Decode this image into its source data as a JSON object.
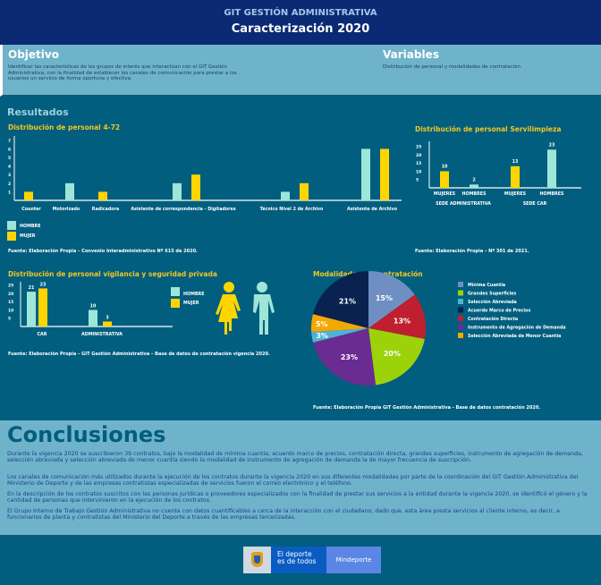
{
  "header": {
    "subtitle": "GIT GESTIÓN ADMINISTRATIVA",
    "title": "Caracterización 2020"
  },
  "objetivo": {
    "title": "Objetivo",
    "text": "Identificar las características de los grupos de interés que interactúan con el GIT Gestión Administrativa, con la finalidad de establecer los canales de comunicación para prestar a los usuarios un servicio de forma oportuna y efectiva."
  },
  "variables": {
    "title": "Variables",
    "text": "Distribución de personal y modalidades de contratación"
  },
  "resultados": {
    "title": "Resultados"
  },
  "colors": {
    "hombre": "#9de6d8",
    "mujer": "#ffd500"
  },
  "chart_data": [
    {
      "type": "bar",
      "title": "Distribución de personal 4-72",
      "categories": [
        "Counter",
        "Motorizado",
        "Radicadora",
        "Asistente de correspondencia - Digitadores",
        "Técnico Nivel 2 de Archivo",
        "Asistente de Archivo"
      ],
      "series": [
        {
          "name": "HOMBRE",
          "values": [
            0,
            2,
            0,
            2,
            1,
            6
          ]
        },
        {
          "name": "MUJER",
          "values": [
            1,
            0,
            1,
            3,
            2,
            6
          ]
        }
      ],
      "yticks": [
        "1",
        "2",
        "3",
        "4",
        "5",
        "6",
        "7"
      ],
      "ylim": [
        0,
        7.5
      ],
      "legend": "bottom-left",
      "source": "Fuente: Elaboración Propia – Convenio Interadministrativo Nº 615 de 2020."
    },
    {
      "type": "bar",
      "title": "Distribución de personal Servilimpieza",
      "groups": [
        "SEDE ADMINISTRATIVA",
        "SEDE CAR"
      ],
      "categories": [
        "MUJERES",
        "HOMBRES",
        "MUJERES",
        "HOMBRES"
      ],
      "values": [
        10,
        2,
        13,
        23
      ],
      "value_labels": [
        "10",
        "2",
        "13",
        "23"
      ],
      "yticks": [
        "5",
        "10",
        "15",
        "20",
        "25"
      ],
      "ylim": [
        0,
        28
      ],
      "source": "Fuente: Elaboración Propia – Nº 301 de 2021."
    },
    {
      "type": "bar",
      "title": "Distribución de personal vigilancia y seguridad privada",
      "categories": [
        "CAR",
        "ADMINISTRATIVA"
      ],
      "series": [
        {
          "name": "HOMBRE",
          "values": [
            21,
            10
          ],
          "labels": [
            "21",
            "10"
          ]
        },
        {
          "name": "MUJER",
          "values": [
            23,
            3
          ],
          "labels": [
            "23",
            "3"
          ]
        }
      ],
      "yticks": [
        "5",
        "10",
        "15",
        "20",
        "25"
      ],
      "ylim": [
        0,
        27
      ],
      "legend": "right",
      "source": "Fuente: Elaboración Propia – GIT Gestión Administrativa – Base de datos de contratación vigencia 2020."
    },
    {
      "type": "pie",
      "title": "Modalidades de contratación",
      "legend": "right",
      "slices": [
        {
          "name": "Mínima Cuantía",
          "value": 15,
          "label": "15%",
          "color": "#6f8fc3"
        },
        {
          "name": "Contratación Directa",
          "value": 13,
          "label": "13%",
          "color": "#c01f2f"
        },
        {
          "name": "Grandes Superficies",
          "value": 20,
          "label": "20%",
          "color": "#9bd20a"
        },
        {
          "name": "Instrumento de Agregación de Demanda",
          "value": 23,
          "label": "23%",
          "color": "#6a2c91"
        },
        {
          "name": "Selección Abreviada",
          "value": 3,
          "label": "3%",
          "color": "#4fb2d2"
        },
        {
          "name": "Selección Abreviada de Menor Cuantía",
          "value": 5,
          "label": "5%",
          "color": "#f5a800"
        },
        {
          "name": "Acuerdo Marco de Precios",
          "value": 21,
          "label": "21%",
          "color": "#0a2250"
        }
      ],
      "legend_order": [
        "Mínima Cuantía",
        "Grandes Superficies",
        "Selección Abreviada",
        "Acuerdo Marco de Precios",
        "Contratación Directa",
        "Instrumento de Agregación de Demanda",
        "Selección Abreviada de Menor Cuantía"
      ],
      "source": "Fuente: Elaboración Propia GIT Gestión Administrativa - Base de datos contratación 2020."
    }
  ],
  "conclusiones": {
    "title": "Conclusiones",
    "paragraphs": [
      "Durante la vigencia 2020 se suscribieron 39 contratos, bajo la modalidad de mínima cuantía, acuerdo marco de precios, contratación directa, grandes superficies, instrumento de agregación de demanda, selección abreviada y selección abreviada de menor cuantía siendo la modalidad de instrumento de agregación de demanda la de mayor frecuencia de suscripción.",
      "Los canales de comunicación más utilizados durante la ejecución de los contratos durante la vigencia 2020 en sus diferentes modalidades por parte de la coordinación del GIT Gestión Administrativa del Ministerio de Deporte y de las empresas contratistas especializadas de servicios fueron el correo electrónico y el teléfono.",
      "En la descripción de los contratos suscritos con las personas jurídicas o proveedores especializados con la finalidad de prestar sus servicios a la entidad durante la vigencia 2020, se identificó el género y la cantidad de personas que intervinieron en la ejecución de los contratos.",
      "El Grupo Interno de Trabajo Gestión Administrativa no cuenta con datos cuantificables a cerca de la interacción con el ciudadano, dado que, esta área presta servicios al cliente interno, es decir, a funcionarios de planta y contratistas del Ministerio del Deporte a través de las empresas tercerizadas."
    ]
  },
  "footer": {
    "slogan_line1": "El deporte",
    "slogan_line2": "es de todos",
    "brand": "Mindeporte"
  }
}
